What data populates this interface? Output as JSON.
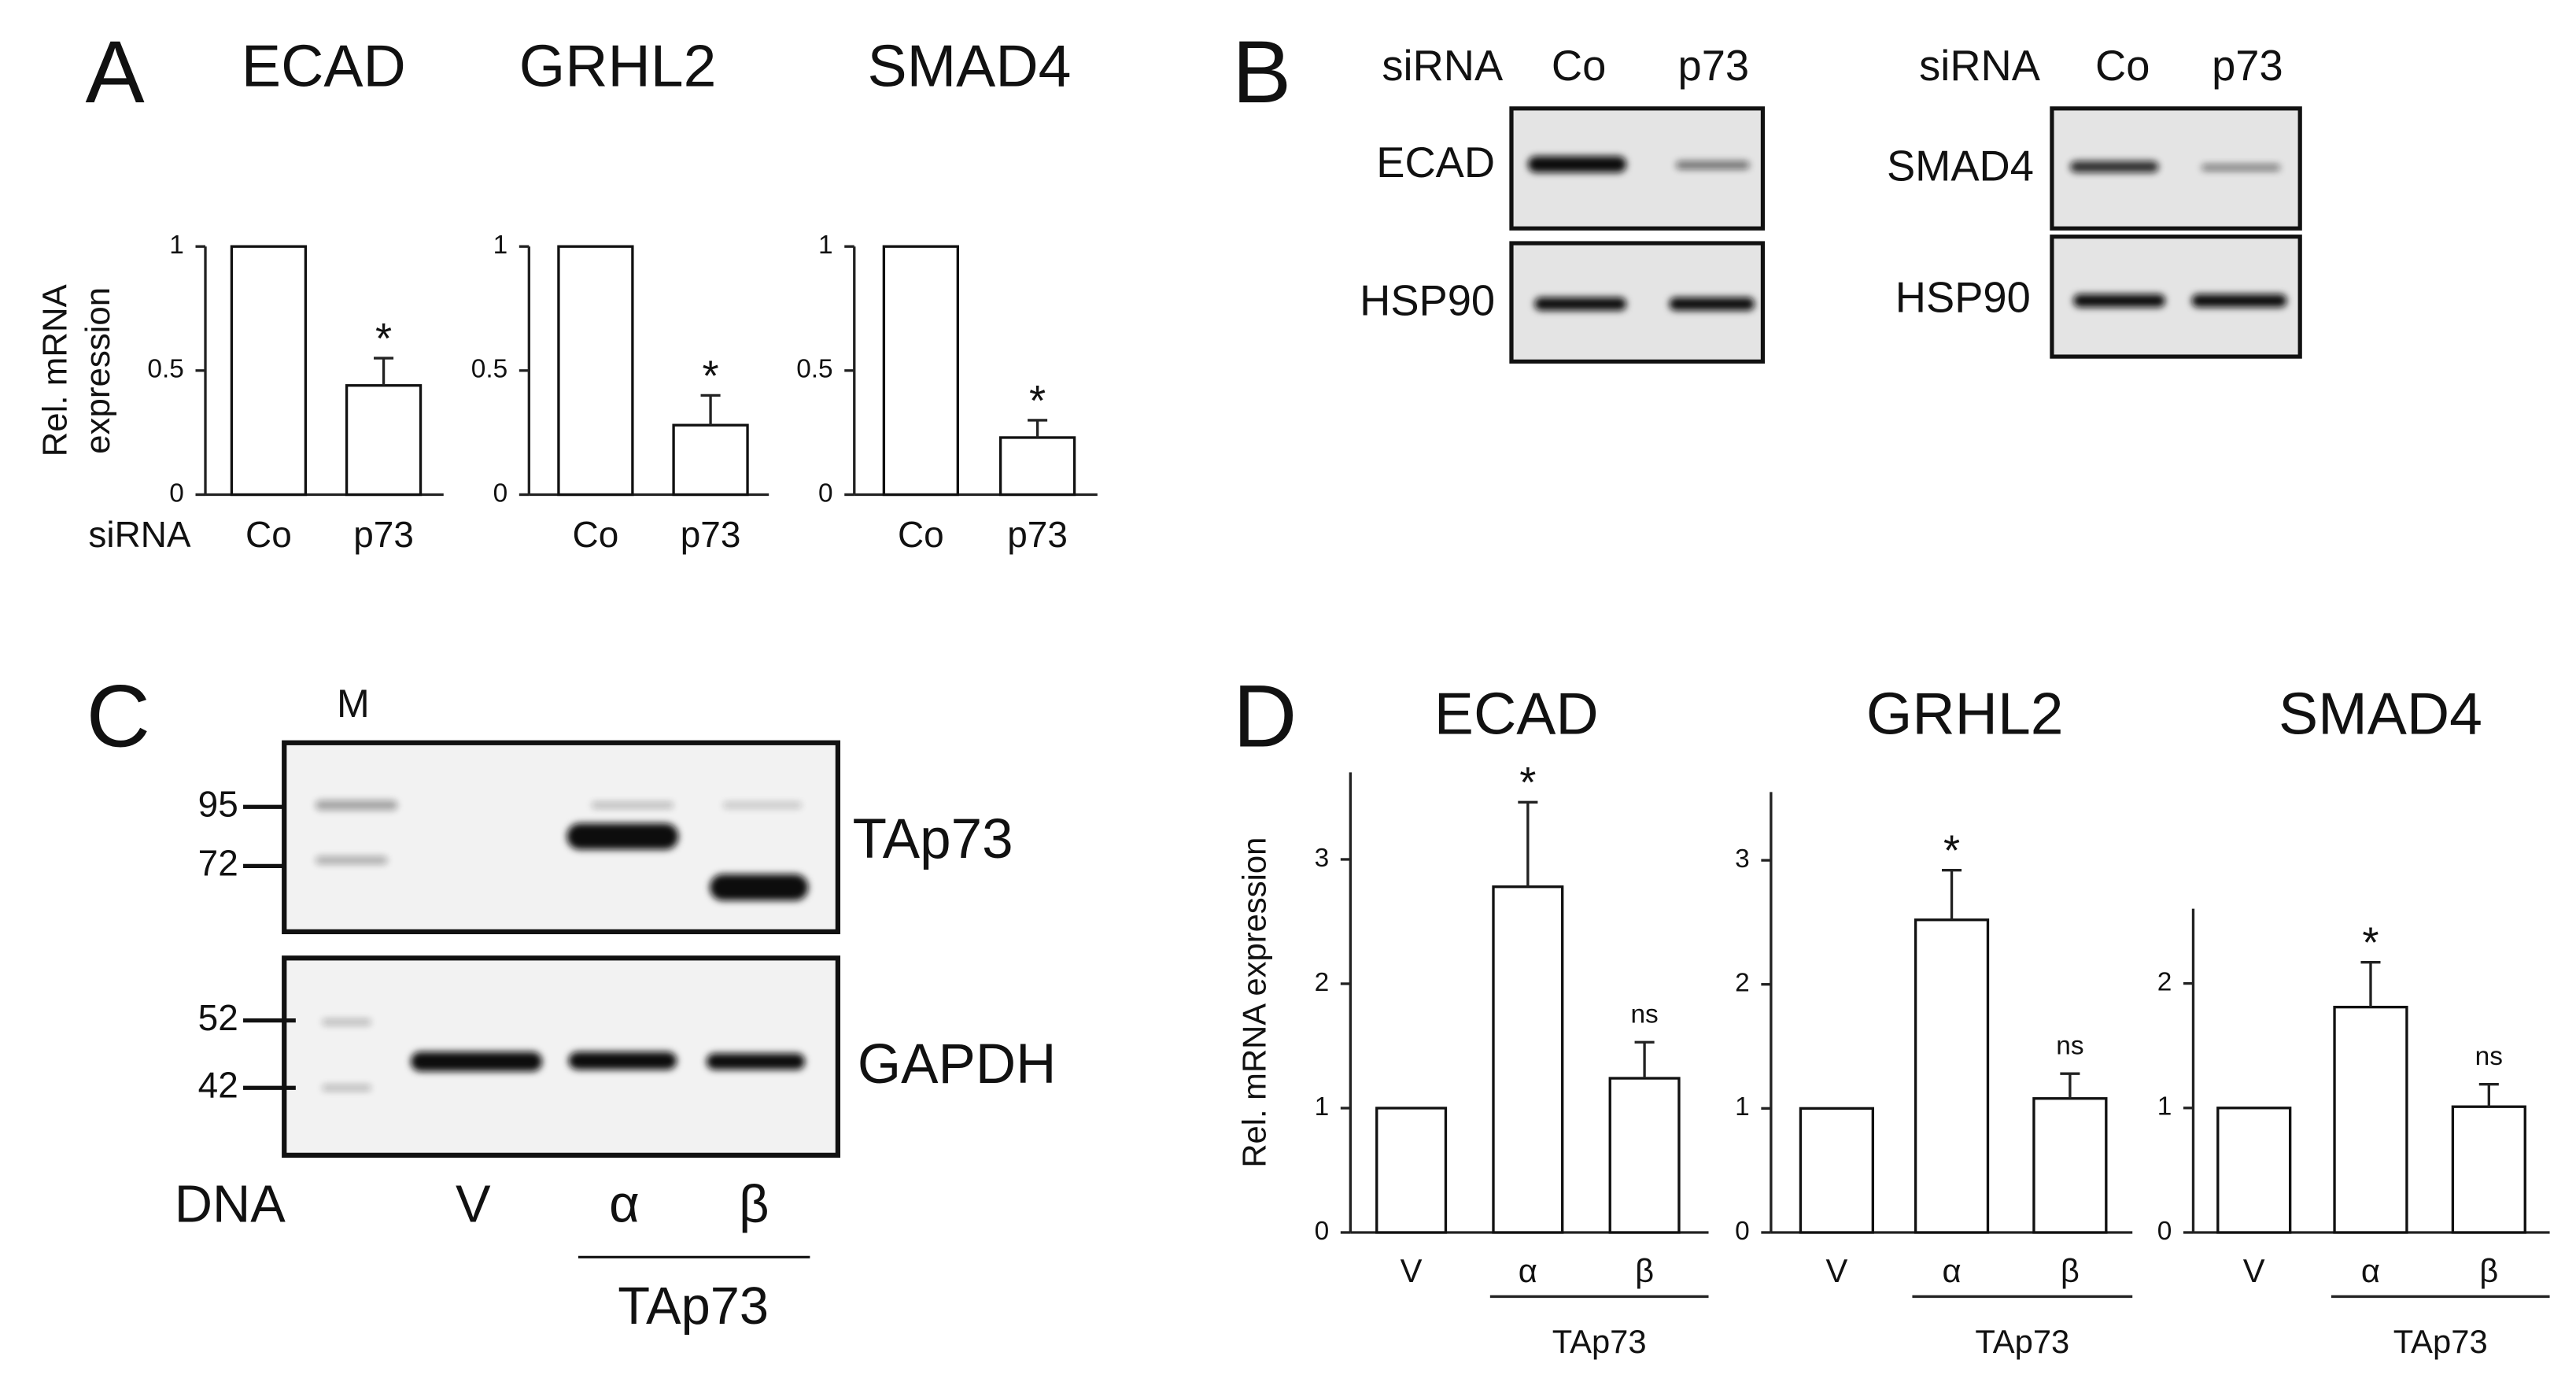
{
  "panel_labels": [
    "A",
    "B",
    "C",
    "D"
  ],
  "chart_data": [
    {
      "type": "bar",
      "title": "ECAD",
      "ylabel": [
        "Rel. mRNA",
        "expression"
      ],
      "row_label": "siRNA",
      "categories": [
        "Co",
        "p73"
      ],
      "values": [
        1,
        0.44
      ],
      "errors": [
        null,
        0.11
      ],
      "annotations": [
        null,
        "*"
      ],
      "ylim": [
        0,
        1
      ],
      "yticks": [
        0,
        0.5,
        1
      ],
      "color": "#ffffff"
    },
    {
      "type": "bar",
      "title": "GRHL2",
      "categories": [
        "Co",
        "p73"
      ],
      "values": [
        1,
        0.28
      ],
      "errors": [
        null,
        0.12
      ],
      "annotations": [
        null,
        "*"
      ],
      "ylim": [
        0,
        1
      ],
      "yticks": [
        0,
        0.5,
        1
      ],
      "color": "#ffffff"
    },
    {
      "type": "bar",
      "title": "SMAD4",
      "categories": [
        "Co",
        "p73"
      ],
      "values": [
        1,
        0.23
      ],
      "errors": [
        null,
        0.07
      ],
      "annotations": [
        null,
        "*"
      ],
      "ylim": [
        0,
        1
      ],
      "yticks": [
        0,
        0.5,
        1
      ],
      "color": "#ffffff"
    },
    {
      "type": "bar",
      "title": "ECAD",
      "ylabel": "Rel. mRNA expression",
      "categories": [
        "V",
        "α",
        "β"
      ],
      "group_label": "TAp73",
      "values": [
        1,
        2.78,
        1.24
      ],
      "errors": [
        null,
        0.68,
        0.29
      ],
      "annotations": [
        null,
        "*",
        "ns"
      ],
      "ylim": [
        0,
        3.7
      ],
      "yticks": [
        0,
        1,
        2,
        3
      ],
      "color": "#ffffff"
    },
    {
      "type": "bar",
      "title": "GRHL2",
      "categories": [
        "V",
        "α",
        "β"
      ],
      "group_label": "TAp73",
      "values": [
        1,
        2.52,
        1.08
      ],
      "errors": [
        null,
        0.4,
        0.2
      ],
      "annotations": [
        null,
        "*",
        "ns"
      ],
      "ylim": [
        0,
        3.55
      ],
      "yticks": [
        0,
        1,
        2,
        3
      ],
      "color": "#ffffff"
    },
    {
      "type": "bar",
      "title": "SMAD4",
      "categories": [
        "V",
        "α",
        "β"
      ],
      "group_label": "TAp73",
      "values": [
        1,
        1.81,
        1.01
      ],
      "errors": [
        null,
        0.36,
        0.18
      ],
      "annotations": [
        null,
        "*",
        "ns"
      ],
      "ylim": [
        0,
        2.6
      ],
      "yticks": [
        0,
        1,
        2
      ],
      "color": "#ffffff"
    }
  ],
  "blot_b": {
    "row_label": "siRNA",
    "lanes": [
      "Co",
      "p73"
    ],
    "left_proteins": [
      "ECAD",
      "HSP90"
    ],
    "right_proteins": [
      "SMAD4",
      "HSP90"
    ]
  },
  "blot_c": {
    "marker_label": "M",
    "markers": [
      95,
      72,
      52,
      42
    ],
    "proteins": [
      "TAp73",
      "GAPDH"
    ],
    "row_label": "DNA",
    "lanes": [
      "V",
      "α",
      "β"
    ],
    "group_label": "TAp73"
  }
}
